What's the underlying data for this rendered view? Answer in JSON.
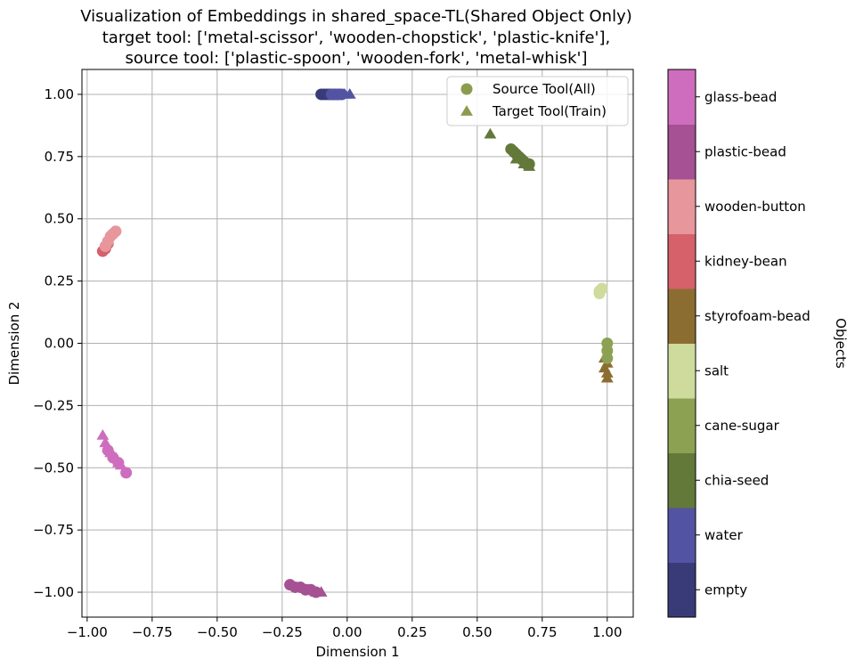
{
  "chart_data": {
    "type": "scatter",
    "title": [
      "Visualization of Embeddings in shared_space-TL(Shared Object Only)",
      "target tool: ['metal-scissor', 'wooden-chopstick', 'plastic-knife'],",
      "source tool: ['plastic-spoon', 'wooden-fork', 'metal-whisk']"
    ],
    "xlabel": "Dimension 1",
    "ylabel": "Dimension 2",
    "xlim": [
      -1.02,
      1.1
    ],
    "ylim": [
      -1.1,
      1.1
    ],
    "xticks": [
      -1.0,
      -0.75,
      -0.5,
      -0.25,
      0.0,
      0.25,
      0.5,
      0.75,
      1.0
    ],
    "xtick_labels": [
      "−1.00",
      "−0.75",
      "−0.50",
      "−0.25",
      "0.00",
      "0.25",
      "0.50",
      "0.75",
      "1.00"
    ],
    "yticks": [
      1.0,
      0.75,
      0.5,
      0.25,
      0.0,
      -0.25,
      -0.5,
      -0.75,
      -1.0
    ],
    "ytick_labels": [
      "1.00",
      "0.75",
      "0.50",
      "0.25",
      "0.00",
      "−0.25",
      "−0.50",
      "−0.75",
      "−1.00"
    ],
    "grid": true,
    "legend": {
      "placement": "top-right",
      "entries": [
        {
          "label": "Source Tool(All)",
          "marker": "circle",
          "color": "#8c9c4e"
        },
        {
          "label": "Target Tool(Train)",
          "marker": "triangle",
          "color": "#8c9c4e"
        }
      ]
    },
    "colorbar": {
      "label": "Objects",
      "categories": [
        {
          "name": "empty",
          "color": "#393b79"
        },
        {
          "name": "water",
          "color": "#5254a3"
        },
        {
          "name": "chia-seed",
          "color": "#637939"
        },
        {
          "name": "cane-sugar",
          "color": "#8ca252"
        },
        {
          "name": "salt",
          "color": "#cedb9c"
        },
        {
          "name": "styrofoam-bead",
          "color": "#8c6d31"
        },
        {
          "name": "kidney-bean",
          "color": "#d6616b"
        },
        {
          "name": "wooden-button",
          "color": "#e7969c"
        },
        {
          "name": "plastic-bead",
          "color": "#a55194"
        },
        {
          "name": "glass-bead",
          "color": "#ce6dbd"
        }
      ]
    },
    "series": [
      {
        "category": "empty",
        "tool": "source",
        "marker": "circle",
        "x": [
          -0.1,
          -0.09,
          -0.08,
          -0.07,
          -0.06,
          -0.05,
          -0.04
        ],
        "y": [
          1.0,
          1.0,
          1.0,
          1.0,
          1.0,
          1.0,
          1.0
        ]
      },
      {
        "category": "water",
        "tool": "source",
        "marker": "circle",
        "x": [
          -0.06,
          -0.05,
          -0.04,
          -0.03,
          -0.02
        ],
        "y": [
          1.0,
          1.0,
          1.0,
          1.0,
          1.0
        ]
      },
      {
        "category": "water",
        "tool": "target",
        "marker": "triangle",
        "x": [
          -0.03,
          -0.01,
          0.01
        ],
        "y": [
          1.0,
          1.0,
          1.0
        ]
      },
      {
        "category": "chia-seed",
        "tool": "source",
        "marker": "circle",
        "x": [
          0.63,
          0.64,
          0.65,
          0.66,
          0.67,
          0.68,
          0.69,
          0.7
        ],
        "y": [
          0.78,
          0.77,
          0.76,
          0.75,
          0.74,
          0.73,
          0.72,
          0.72
        ]
      },
      {
        "category": "chia-seed",
        "tool": "target",
        "marker": "triangle",
        "x": [
          0.55,
          0.65,
          0.68,
          0.7
        ],
        "y": [
          0.84,
          0.74,
          0.72,
          0.71
        ]
      },
      {
        "category": "salt",
        "tool": "source",
        "marker": "circle",
        "x": [
          0.97,
          0.97,
          0.98
        ],
        "y": [
          0.2,
          0.21,
          0.22
        ]
      },
      {
        "category": "styrofoam-bead",
        "tool": "target",
        "marker": "triangle",
        "x": [
          0.99,
          0.99,
          1.0,
          1.0,
          1.0
        ],
        "y": [
          -0.06,
          -0.1,
          -0.08,
          -0.12,
          -0.14
        ]
      },
      {
        "category": "cane-sugar",
        "tool": "source",
        "marker": "circle",
        "x": [
          1.0,
          1.0,
          1.0
        ],
        "y": [
          0.0,
          -0.03,
          -0.06
        ]
      },
      {
        "category": "kidney-bean",
        "tool": "source",
        "marker": "circle",
        "x": [
          -0.94,
          -0.93,
          -0.92
        ],
        "y": [
          0.37,
          0.38,
          0.4
        ]
      },
      {
        "category": "wooden-button",
        "tool": "source",
        "marker": "circle",
        "x": [
          -0.93,
          -0.92,
          -0.91,
          -0.9,
          -0.89
        ],
        "y": [
          0.39,
          0.41,
          0.43,
          0.44,
          0.45
        ]
      },
      {
        "category": "glass-bead",
        "tool": "target",
        "marker": "triangle",
        "x": [
          -0.94,
          -0.93,
          -0.92,
          -0.91,
          -0.9,
          -0.89,
          -0.88,
          -0.87
        ],
        "y": [
          -0.37,
          -0.4,
          -0.42,
          -0.44,
          -0.45,
          -0.46,
          -0.48,
          -0.49
        ]
      },
      {
        "category": "glass-bead",
        "tool": "source",
        "marker": "circle",
        "x": [
          -0.92,
          -0.9,
          -0.88,
          -0.85
        ],
        "y": [
          -0.43,
          -0.46,
          -0.48,
          -0.52
        ]
      },
      {
        "category": "plastic-bead",
        "tool": "source",
        "marker": "circle",
        "x": [
          -0.22,
          -0.2,
          -0.18,
          -0.16,
          -0.14,
          -0.12
        ],
        "y": [
          -0.97,
          -0.98,
          -0.98,
          -0.99,
          -0.99,
          -1.0
        ]
      },
      {
        "category": "plastic-bead",
        "tool": "target",
        "marker": "triangle",
        "x": [
          -0.15,
          -0.12,
          -0.1
        ],
        "y": [
          -0.99,
          -1.0,
          -1.0
        ]
      }
    ]
  }
}
